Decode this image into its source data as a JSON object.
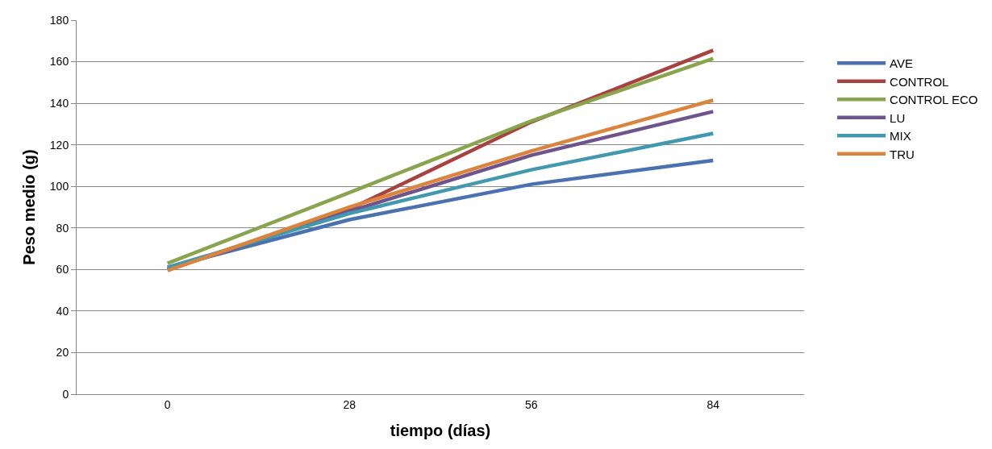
{
  "chart_data": {
    "type": "line",
    "xlabel": "tiempo (días)",
    "ylabel": "Peso medio (g)",
    "categories": [
      "0",
      "28",
      "56",
      "84"
    ],
    "series": [
      {
        "name": "AVE",
        "color": "#4a72b0",
        "values": [
          61,
          84,
          101,
          112.5
        ]
      },
      {
        "name": "CONTROL",
        "color": "#a8423f",
        "values": [
          60,
          89,
          131,
          165.5
        ]
      },
      {
        "name": "CONTROL ECO",
        "color": "#88a44c",
        "values": [
          63,
          97,
          131.5,
          161.5
        ]
      },
      {
        "name": "LU",
        "color": "#6e548d",
        "values": [
          60,
          88,
          115,
          136
        ]
      },
      {
        "name": "MIX",
        "color": "#4298af",
        "values": [
          61,
          87,
          108,
          125.5
        ]
      },
      {
        "name": "TRU",
        "color": "#db843d",
        "values": [
          59.5,
          90,
          117,
          141.5
        ]
      }
    ],
    "ylim": [
      0,
      180
    ],
    "yticks": [
      0,
      20,
      40,
      60,
      80,
      100,
      120,
      140,
      160,
      180
    ],
    "grid": "y",
    "legend": "right",
    "marker": "none",
    "line_style": "solid"
  }
}
